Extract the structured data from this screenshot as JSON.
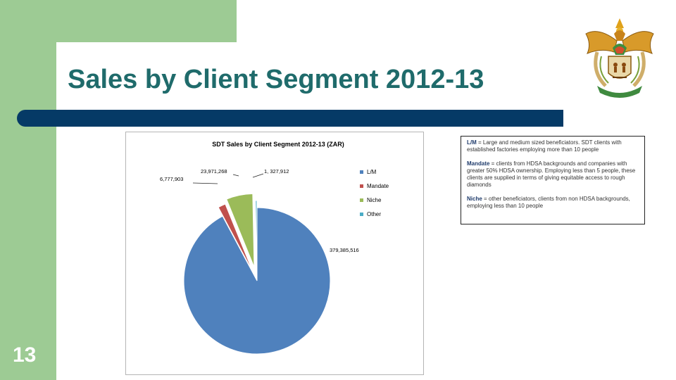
{
  "slide": {
    "title": "Sales by Client Segment 2012-13",
    "page_number": "13",
    "colors": {
      "green": "#9dcb94",
      "title": "#1f6b6b",
      "bar": "#053a66"
    },
    "logo_icon": "south-africa-coat-of-arms-icon",
    "logo_motto": "!KE E: /XARRA //KE"
  },
  "chart_data": {
    "type": "pie",
    "title": "SDT Sales by Client Segment 2012-13 (ZAR)",
    "legend_position": "right",
    "series": [
      {
        "name": "L/M",
        "value": 379385516,
        "label": "379,385,516",
        "color": "#4f81bd"
      },
      {
        "name": "Mandate",
        "value": 6777903,
        "label": "6,777,903",
        "color": "#c0504d"
      },
      {
        "name": "Niche",
        "value": 23971268,
        "label": "23,971,268",
        "color": "#9bbb59"
      },
      {
        "name": "Other",
        "value": 1327912,
        "label": "1, 327,912",
        "color": "#4bacc6"
      }
    ]
  },
  "notes": [
    {
      "term": "L/M",
      "text": " = Large and medium sized beneficiators. SDT clients with established factories employing more than 10 people"
    },
    {
      "term": "Mandate",
      "text": " = clients from HDSA backgrounds and companies with greater 50% HDSA ownership. Employing less than 5 people, these clients are supplied in terms of giving equitable access to rough diamonds"
    },
    {
      "term": "Niche",
      "text": " = other beneficiators, clients from non HDSA backgrounds, employing less than 10 people"
    }
  ]
}
